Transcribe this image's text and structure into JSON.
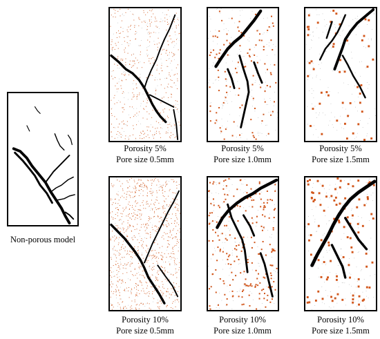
{
  "figure": {
    "non_porous": {
      "caption": "Non-porous model"
    },
    "pore_color": "#d2571c",
    "crack_color": "#000000",
    "panels": [
      {
        "id": "p5-05",
        "porosity_label": "Porosity  5%",
        "size_label": "Pore size  0.5mm",
        "porosity": 5,
        "pore_size_mm": 0.5
      },
      {
        "id": "p5-10",
        "porosity_label": "Porosity  5%",
        "size_label": "Pore size  1.0mm",
        "porosity": 5,
        "pore_size_mm": 1.0
      },
      {
        "id": "p5-15",
        "porosity_label": "Porosity  5%",
        "size_label": "Pore size  1.5mm",
        "porosity": 5,
        "pore_size_mm": 1.5
      },
      {
        "id": "p10-05",
        "porosity_label": "Porosity  10%",
        "size_label": "Pore size  0.5mm",
        "porosity": 10,
        "pore_size_mm": 0.5
      },
      {
        "id": "p10-10",
        "porosity_label": "Porosity  10%",
        "size_label": "Pore size  1.0mm",
        "porosity": 10,
        "pore_size_mm": 1.0
      },
      {
        "id": "p10-15",
        "porosity_label": "Porosity  10%",
        "size_label": "Pore size  1.5mm",
        "porosity": 10,
        "pore_size_mm": 1.5
      }
    ]
  }
}
